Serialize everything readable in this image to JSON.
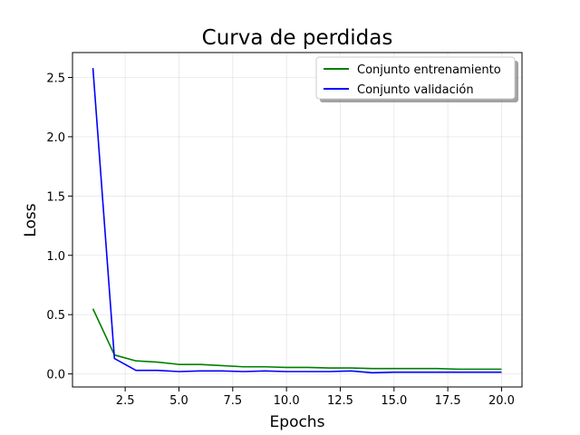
{
  "chart_data": {
    "type": "line",
    "title": "Curva de perdidas",
    "xlabel": "Epochs",
    "ylabel": "Loss",
    "xlim": [
      0.05,
      20.95
    ],
    "ylim": [
      -0.11,
      2.71
    ],
    "xticks": [
      2.5,
      5.0,
      7.5,
      10.0,
      12.5,
      15.0,
      17.5,
      20.0
    ],
    "xtick_labels": [
      "2.5",
      "5.0",
      "7.5",
      "10.0",
      "12.5",
      "15.0",
      "17.5",
      "20.0"
    ],
    "yticks": [
      0.0,
      0.5,
      1.0,
      1.5,
      2.0,
      2.5
    ],
    "ytick_labels": [
      "0.0",
      "0.5",
      "1.0",
      "1.5",
      "2.0",
      "2.5"
    ],
    "grid": true,
    "legend_position": "top-right",
    "x": [
      1,
      2,
      3,
      4,
      5,
      6,
      7,
      8,
      9,
      10,
      11,
      12,
      13,
      14,
      15,
      16,
      17,
      18,
      19,
      20
    ],
    "series": [
      {
        "name": "Conjunto entrenamiento",
        "color": "#008000",
        "values": [
          0.55,
          0.16,
          0.11,
          0.1,
          0.08,
          0.08,
          0.07,
          0.06,
          0.06,
          0.055,
          0.055,
          0.05,
          0.05,
          0.045,
          0.045,
          0.045,
          0.045,
          0.04,
          0.04,
          0.04
        ]
      },
      {
        "name": "Conjunto validación",
        "color": "#0000ff",
        "values": [
          2.58,
          0.13,
          0.03,
          0.03,
          0.02,
          0.025,
          0.025,
          0.02,
          0.025,
          0.02,
          0.02,
          0.02,
          0.025,
          0.01,
          0.015,
          0.015,
          0.015,
          0.015,
          0.015,
          0.015
        ]
      }
    ]
  }
}
